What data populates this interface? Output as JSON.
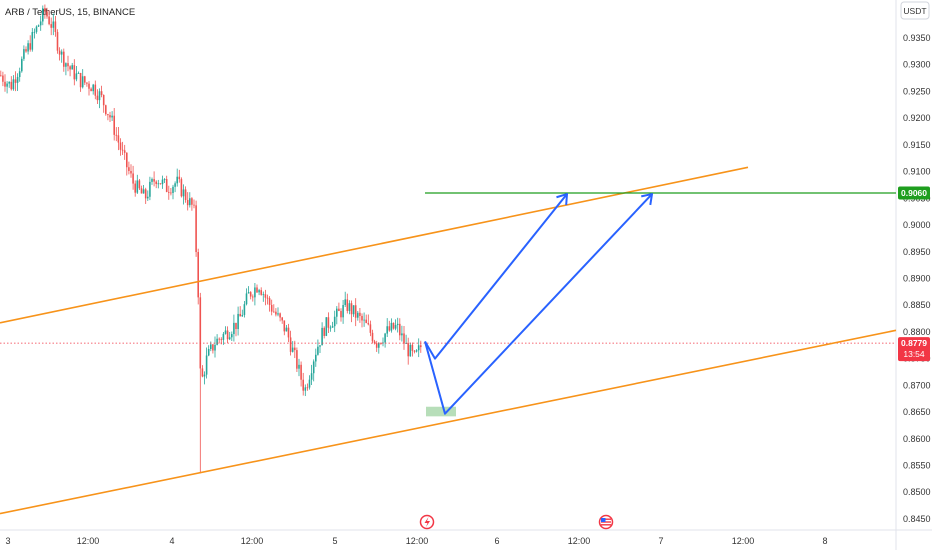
{
  "header": {
    "symbol_title": "ARB / TetherUS, 15, BINANCE",
    "currency_label": "USDT"
  },
  "colors": {
    "up": "#26a69a",
    "down": "#ef5350",
    "channel": "#f7931a",
    "target": "#1e9e1e",
    "arrow": "#2962ff",
    "current": "#f23645",
    "zone": "#a5d6a7"
  },
  "chart_data": {
    "type": "candlestick",
    "title": "ARB / TetherUS, 15, BINANCE",
    "ylim": [
      0.844,
      0.941
    ],
    "y_ticks": [
      "0.9350",
      "0.9300",
      "0.9250",
      "0.9200",
      "0.9150",
      "0.9100",
      "0.9050",
      "0.9000",
      "0.8950",
      "0.8900",
      "0.8850",
      "0.8800",
      "0.8750",
      "0.8700",
      "0.8650",
      "0.8600",
      "0.8550",
      "0.8500",
      "0.8450"
    ],
    "x_ticks": [
      "3",
      "12:00",
      "4",
      "12:00",
      "5",
      "12:00",
      "6",
      "12:00",
      "7",
      "12:00",
      "8"
    ],
    "current_price": "0.8779",
    "countdown": "13:54",
    "target_price": "0.9060",
    "target_level": 0.906,
    "anchors": [
      {
        "t": 0,
        "p": 0.928
      },
      {
        "t": 10,
        "p": 0.926
      },
      {
        "t": 22,
        "p": 0.931
      },
      {
        "t": 34,
        "p": 0.936
      },
      {
        "t": 44,
        "p": 0.94
      },
      {
        "t": 52,
        "p": 0.937
      },
      {
        "t": 60,
        "p": 0.932
      },
      {
        "t": 70,
        "p": 0.929
      },
      {
        "t": 80,
        "p": 0.927
      },
      {
        "t": 92,
        "p": 0.926
      },
      {
        "t": 100,
        "p": 0.924
      },
      {
        "t": 110,
        "p": 0.92
      },
      {
        "t": 122,
        "p": 0.913
      },
      {
        "t": 132,
        "p": 0.908
      },
      {
        "t": 144,
        "p": 0.905
      },
      {
        "t": 155,
        "p": 0.909
      },
      {
        "t": 166,
        "p": 0.907
      },
      {
        "t": 176,
        "p": 0.908
      },
      {
        "t": 186,
        "p": 0.905
      },
      {
        "t": 193,
        "p": 0.903
      },
      {
        "t": 197,
        "p": 0.889
      },
      {
        "t": 200,
        "p": 0.87
      },
      {
        "t": 206,
        "p": 0.875
      },
      {
        "t": 214,
        "p": 0.878
      },
      {
        "t": 226,
        "p": 0.88
      },
      {
        "t": 238,
        "p": 0.882
      },
      {
        "t": 248,
        "p": 0.887
      },
      {
        "t": 258,
        "p": 0.889
      },
      {
        "t": 266,
        "p": 0.886
      },
      {
        "t": 276,
        "p": 0.883
      },
      {
        "t": 286,
        "p": 0.88
      },
      {
        "t": 296,
        "p": 0.874
      },
      {
        "t": 304,
        "p": 0.869
      },
      {
        "t": 314,
        "p": 0.876
      },
      {
        "t": 324,
        "p": 0.881
      },
      {
        "t": 336,
        "p": 0.883
      },
      {
        "t": 346,
        "p": 0.885
      },
      {
        "t": 356,
        "p": 0.883
      },
      {
        "t": 366,
        "p": 0.881
      },
      {
        "t": 376,
        "p": 0.878
      },
      {
        "t": 386,
        "p": 0.88
      },
      {
        "t": 396,
        "p": 0.881
      },
      {
        "t": 406,
        "p": 0.877
      },
      {
        "t": 414,
        "p": 0.875
      },
      {
        "t": 422,
        "p": 0.878
      }
    ],
    "annotations": {
      "channel_upper": {
        "x1": 0,
        "y1": 0.8817,
        "x2": 748,
        "y2": 0.9108
      },
      "channel_lower": {
        "x1": 0,
        "y1": 0.846,
        "x2": 896,
        "y2": 0.8803
      },
      "target_line": {
        "x1": 425,
        "x2": 896,
        "y": 0.906
      },
      "path_a": [
        {
          "x": 425,
          "y": 0.8782
        },
        {
          "x": 435,
          "y": 0.875
        },
        {
          "x": 567,
          "y": 0.9058
        }
      ],
      "path_b": [
        {
          "x": 425,
          "y": 0.8782
        },
        {
          "x": 445,
          "y": 0.8647
        },
        {
          "x": 652,
          "y": 0.9058
        }
      ],
      "zone": {
        "x1": 426,
        "x2": 456,
        "y1": 0.8642,
        "y2": 0.866
      },
      "current_line_x_start": 0
    }
  }
}
